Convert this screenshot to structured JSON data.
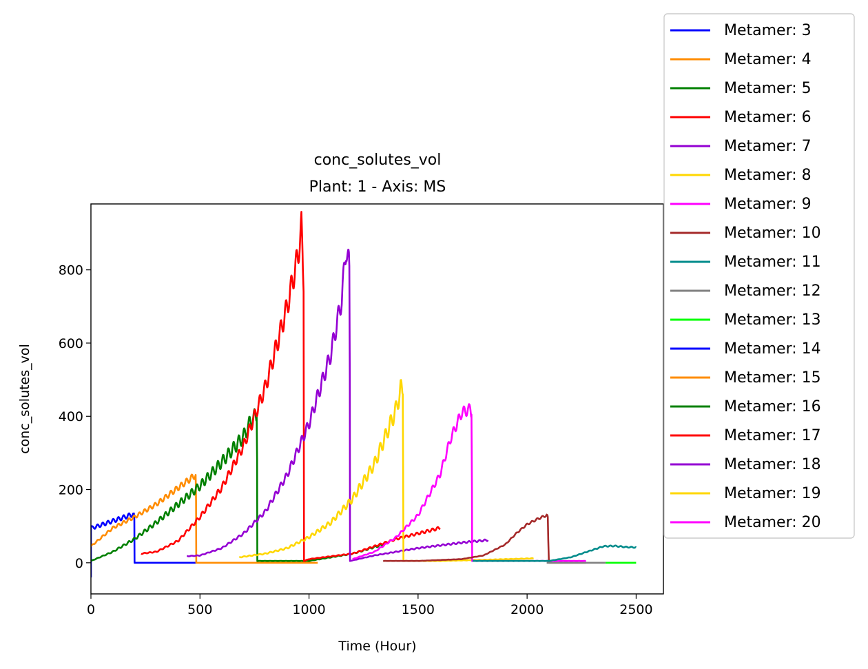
{
  "chart_data": {
    "type": "line",
    "title": "conc_solutes_vol",
    "subtitle": "Plant: 1 - Axis: MS",
    "xlabel": "Time (Hour)",
    "ylabel": "conc_solutes_vol",
    "xlim": [
      0,
      2625
    ],
    "ylim": [
      -85,
      980
    ],
    "xticks": [
      0,
      500,
      1000,
      1500,
      2000,
      2500
    ],
    "yticks": [
      0,
      200,
      400,
      600,
      800
    ],
    "legend_position": "outside-top-right",
    "grid": false,
    "series": [
      {
        "name": "Metamer: 3",
        "color": "#0000ff",
        "x": [
          0,
          0,
          5,
          195,
          197,
          199,
          200,
          201,
          480
        ],
        "y": [
          -40,
          100,
          95,
          133,
          135,
          120,
          0,
          0,
          0
        ],
        "osc": 13,
        "period": 24
      },
      {
        "name": "Metamer: 4",
        "color": "#ff8c00",
        "x": [
          0,
          100,
          200,
          300,
          400,
          480,
          482,
          483,
          1040
        ],
        "y": [
          45,
          95,
          125,
          160,
          205,
          240,
          170,
          0,
          0
        ],
        "osc": 18,
        "period": 24
      },
      {
        "name": "Metamer: 5",
        "color": "#008000",
        "x": [
          0,
          100,
          200,
          300,
          400,
          500,
          600,
          700,
          740,
          760,
          762,
          763,
          1000,
          1200,
          1340
        ],
        "y": [
          5,
          30,
          65,
          110,
          160,
          210,
          275,
          345,
          395,
          400,
          280,
          5,
          5,
          25,
          50
        ],
        "osc": 45,
        "period": 24
      },
      {
        "name": "Metamer: 6",
        "color": "#ff0000",
        "x": [
          230,
          300,
          400,
          500,
          600,
          700,
          800,
          900,
          950,
          965,
          972,
          975,
          977,
          1000,
          1200,
          1400,
          1600
        ],
        "y": [
          25,
          30,
          60,
          125,
          205,
          320,
          480,
          700,
          840,
          920,
          800,
          740,
          5,
          10,
          25,
          65,
          95
        ],
        "osc": 80,
        "period": 24
      },
      {
        "name": "Metamer: 7",
        "color": "#9400d3",
        "x": [
          440,
          500,
          600,
          700,
          800,
          900,
          1000,
          1100,
          1150,
          1170,
          1185,
          1187,
          1188,
          1300,
          1500,
          1700,
          1820
        ],
        "y": [
          18,
          20,
          40,
          80,
          140,
          240,
          380,
          570,
          720,
          860,
          810,
          500,
          5,
          20,
          40,
          55,
          62
        ],
        "osc": 70,
        "period": 24
      },
      {
        "name": "Metamer: 8",
        "color": "#ffd700",
        "x": [
          680,
          800,
          900,
          1000,
          1100,
          1200,
          1300,
          1400,
          1420,
          1430,
          1432,
          1433,
          1600,
          1800,
          2030
        ],
        "y": [
          15,
          25,
          40,
          70,
          110,
          175,
          270,
          420,
          475,
          460,
          200,
          5,
          5,
          8,
          12
        ],
        "osc": 55,
        "period": 24
      },
      {
        "name": "Metamer: 9",
        "color": "#ff00ff",
        "x": [
          1200,
          1300,
          1400,
          1500,
          1600,
          1650,
          1700,
          1740,
          1745,
          1747,
          1748,
          2270
        ],
        "y": [
          10,
          30,
          70,
          130,
          240,
          340,
          410,
          420,
          405,
          200,
          5,
          5
        ],
        "osc": 30,
        "period": 24
      },
      {
        "name": "Metamer: 10",
        "color": "#a52a2a",
        "x": [
          1340,
          1500,
          1700,
          1800,
          1900,
          1950,
          2000,
          2050,
          2090,
          2095,
          2097,
          2100,
          2270
        ],
        "y": [
          5,
          5,
          10,
          20,
          50,
          80,
          105,
          120,
          130,
          125,
          60,
          0,
          0
        ],
        "osc": 6,
        "period": 24
      },
      {
        "name": "Metamer: 11",
        "color": "#008b8b",
        "x": [
          1750,
          2000,
          2100,
          2200,
          2300,
          2350,
          2400,
          2450,
          2500
        ],
        "y": [
          5,
          5,
          5,
          15,
          35,
          45,
          46,
          43,
          42
        ],
        "osc": 3,
        "period": 24
      },
      {
        "name": "Metamer: 12",
        "color": "#808080",
        "x": [
          2090,
          2200,
          2360
        ],
        "y": [
          0,
          0,
          0
        ],
        "osc": 0,
        "period": 24
      },
      {
        "name": "Metamer: 13",
        "color": "#00ff00",
        "x": [
          2360,
          2500
        ],
        "y": [
          0,
          0
        ],
        "osc": 0,
        "period": 24
      },
      {
        "name": "Metamer: 14",
        "color": "#0000ff",
        "x": [],
        "y": [],
        "osc": 0,
        "period": 24
      },
      {
        "name": "Metamer: 15",
        "color": "#ff8c00",
        "x": [],
        "y": [],
        "osc": 0,
        "period": 24
      },
      {
        "name": "Metamer: 16",
        "color": "#008000",
        "x": [],
        "y": [],
        "osc": 0,
        "period": 24
      },
      {
        "name": "Metamer: 17",
        "color": "#ff0000",
        "x": [],
        "y": [],
        "osc": 0,
        "period": 24
      },
      {
        "name": "Metamer: 18",
        "color": "#9400d3",
        "x": [],
        "y": [],
        "osc": 0,
        "period": 24
      },
      {
        "name": "Metamer: 19",
        "color": "#ffd700",
        "x": [],
        "y": [],
        "osc": 0,
        "period": 24
      },
      {
        "name": "Metamer: 20",
        "color": "#ff00ff",
        "x": [],
        "y": [],
        "osc": 0,
        "period": 24
      }
    ]
  }
}
